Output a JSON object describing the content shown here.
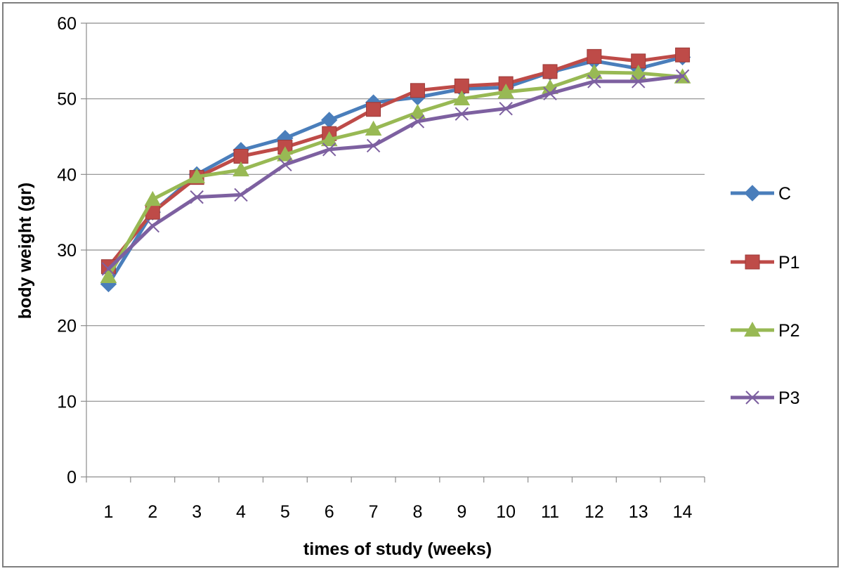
{
  "chart_data": {
    "type": "line",
    "title": "",
    "xlabel": "times of study (weeks)",
    "ylabel": "body weight (gr)",
    "x": [
      "1",
      "2",
      "3",
      "4",
      "5",
      "6",
      "7",
      "8",
      "9",
      "10",
      "11",
      "12",
      "13",
      "14"
    ],
    "ylim": [
      0,
      60
    ],
    "yticks": [
      0,
      10,
      20,
      30,
      40,
      50,
      60
    ],
    "grid": true,
    "legend": "right",
    "series": [
      {
        "name": "C",
        "color": "#4a7ebb",
        "marker": "diamond",
        "values": [
          25.5,
          35.0,
          40.0,
          43.2,
          44.8,
          47.2,
          49.5,
          50.2,
          51.3,
          51.5,
          53.5,
          55.0,
          54.0,
          55.5
        ]
      },
      {
        "name": "P1",
        "color": "#be4b48",
        "marker": "square",
        "values": [
          27.8,
          35.0,
          39.6,
          42.4,
          43.6,
          45.4,
          48.6,
          51.1,
          51.7,
          52.0,
          53.6,
          55.6,
          55.0,
          55.8
        ]
      },
      {
        "name": "P2",
        "color": "#98b954",
        "marker": "triangle",
        "values": [
          26.5,
          36.7,
          39.7,
          40.6,
          42.6,
          44.6,
          46.0,
          48.2,
          50.0,
          50.9,
          51.5,
          53.5,
          53.4,
          52.9
        ]
      },
      {
        "name": "P3",
        "color": "#7d60a0",
        "marker": "x",
        "values": [
          27.5,
          33.2,
          37.0,
          37.3,
          41.3,
          43.3,
          43.8,
          47.0,
          48.0,
          48.7,
          50.7,
          52.3,
          52.3,
          53.0
        ]
      }
    ]
  }
}
